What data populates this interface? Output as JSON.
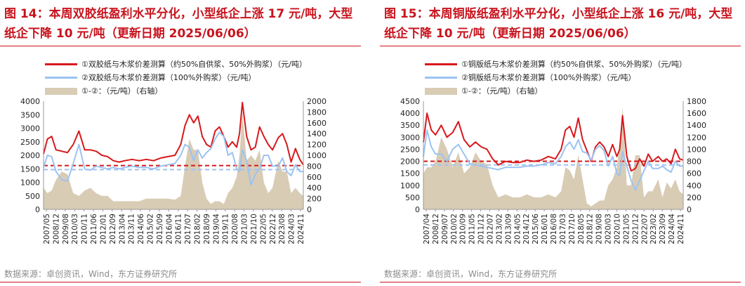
{
  "panels": [
    {
      "title": "图 14：本周双胶纸盈利水平分化，小型纸企上涨 17 元/吨，大型纸企下降 10 元/吨（更新日期 2025/06/06）",
      "source": "数据来源：卓创资讯，Wind，东方证券研究所",
      "chart_data": {
        "type": "line",
        "left_axis": {
          "ylim": [
            0,
            4000
          ],
          "ticks": [
            "0",
            "500",
            "1000",
            "1500",
            "2000",
            "2500",
            "3000",
            "3500",
            "4000"
          ]
        },
        "right_axis": {
          "ylim": [
            0,
            2000
          ],
          "ticks": [
            "0",
            "200",
            "400",
            "600",
            "800",
            "1000",
            "1200",
            "1400",
            "1600",
            "1800",
            "2000"
          ]
        },
        "x_tick_labels": [
          "2007/05",
          "2008/12",
          "2009/08",
          "2010/03",
          "2010/11",
          "2011/06",
          "2012/01",
          "2012/09",
          "2013/04",
          "2013/11",
          "2014/06",
          "2015/02",
          "2015/09",
          "2016/04",
          "2016/11",
          "2017/07",
          "2018/02",
          "2018/09",
          "2019/04",
          "2019/11",
          "2020/08",
          "2021/03",
          "2021/10",
          "2022/05",
          "2022/12",
          "2023/08",
          "2024/03",
          "2024/11"
        ],
        "x_range": [
          2007.33,
          2025.45
        ],
        "reference_lines": [
          {
            "series": "①",
            "value": 1620,
            "axis": "left",
            "color": "#d7191c"
          },
          {
            "series": "②",
            "value": 1470,
            "axis": "left",
            "color": "#9cc3f2"
          }
        ],
        "series": [
          {
            "name": "①双胶纸与木浆价差测算（约50%自供浆、50%外购浆）（元/吨）",
            "axis": "left",
            "type": "line",
            "color": "#d7191c",
            "x": [
              2007.33,
              2007.6,
              2007.9,
              2008.2,
              2008.6,
              2009.0,
              2009.4,
              2009.8,
              2010.2,
              2010.6,
              2011.0,
              2011.4,
              2011.8,
              2012.2,
              2012.6,
              2013.0,
              2013.5,
              2014.0,
              2014.5,
              2015.0,
              2015.5,
              2016.0,
              2016.5,
              2016.9,
              2017.2,
              2017.5,
              2017.8,
              2018.1,
              2018.4,
              2018.7,
              2019.0,
              2019.3,
              2019.6,
              2019.9,
              2020.2,
              2020.5,
              2020.8,
              2021.0,
              2021.2,
              2021.5,
              2021.8,
              2022.1,
              2022.4,
              2022.7,
              2023.0,
              2023.3,
              2023.7,
              2024.0,
              2024.3,
              2024.6,
              2024.9,
              2025.2,
              2025.45
            ],
            "values": [
              2050,
              2600,
              2700,
              2200,
              2150,
              2100,
              2400,
              2900,
              2200,
              2200,
              2150,
              2000,
              1950,
              1800,
              1750,
              1800,
              1850,
              1800,
              1850,
              1800,
              1900,
              1950,
              2000,
              2400,
              3100,
              3500,
              3200,
              3450,
              2700,
              2400,
              2300,
              2900,
              3050,
              2700,
              2300,
              2500,
              2300,
              2800,
              3950,
              2700,
              2200,
              2300,
              3050,
              2700,
              2400,
              2200,
              2650,
              2800,
              2400,
              1750,
              2250,
              1850,
              1650
            ]
          },
          {
            "name": "②双胶纸与木浆价差测算（100%外购浆）（元/吨）",
            "axis": "left",
            "type": "line",
            "color": "#9cc3f2",
            "x": [
              2007.33,
              2007.6,
              2007.9,
              2008.2,
              2008.6,
              2009.0,
              2009.4,
              2009.8,
              2010.2,
              2010.6,
              2011.0,
              2011.4,
              2011.8,
              2012.2,
              2012.6,
              2013.0,
              2013.5,
              2014.0,
              2014.5,
              2015.0,
              2015.5,
              2016.0,
              2016.5,
              2016.9,
              2017.2,
              2017.5,
              2017.8,
              2018.1,
              2018.4,
              2018.7,
              2019.0,
              2019.3,
              2019.6,
              2019.9,
              2020.2,
              2020.5,
              2020.8,
              2021.0,
              2021.2,
              2021.5,
              2021.8,
              2022.1,
              2022.4,
              2022.7,
              2023.0,
              2023.3,
              2023.7,
              2024.0,
              2024.3,
              2024.6,
              2024.9,
              2025.2,
              2025.45
            ],
            "values": [
              1550,
              2000,
              1950,
              1400,
              1100,
              1050,
              1700,
              2400,
              1500,
              1450,
              1600,
              1550,
              1500,
              1550,
              1500,
              1550,
              1600,
              1550,
              1550,
              1500,
              1600,
              1650,
              1700,
              2000,
              2400,
              2300,
              1800,
              2200,
              1900,
              2100,
              2250,
              2600,
              2850,
              2700,
              2000,
              2100,
              1500,
              1400,
              2200,
              1800,
              900,
              1300,
              1500,
              2000,
              2000,
              1600,
              1600,
              1900,
              1400,
              1250,
              1650,
              1400,
              1400
            ]
          },
          {
            "name": "①-②：（元/吨）（右轴）",
            "axis": "right",
            "type": "area",
            "color": "#d9ccb5",
            "x": [
              2007.33,
              2007.6,
              2007.9,
              2008.2,
              2008.6,
              2009.0,
              2009.4,
              2009.8,
              2010.2,
              2010.6,
              2011.0,
              2011.4,
              2011.8,
              2012.2,
              2012.6,
              2013.0,
              2013.5,
              2014.0,
              2014.5,
              2015.0,
              2015.5,
              2016.0,
              2016.5,
              2016.9,
              2017.2,
              2017.5,
              2017.8,
              2018.1,
              2018.4,
              2018.7,
              2019.0,
              2019.3,
              2019.6,
              2019.9,
              2020.2,
              2020.5,
              2020.8,
              2021.0,
              2021.2,
              2021.5,
              2021.8,
              2022.1,
              2022.4,
              2022.7,
              2023.0,
              2023.3,
              2023.7,
              2024.0,
              2024.3,
              2024.6,
              2024.9,
              2025.2,
              2025.45
            ],
            "values": [
              400,
              300,
              350,
              550,
              700,
              650,
              300,
              250,
              350,
              400,
              300,
              250,
              250,
              150,
              150,
              150,
              150,
              150,
              200,
              200,
              200,
              200,
              180,
              250,
              800,
              1300,
              1100,
              1100,
              500,
              200,
              100,
              150,
              150,
              100,
              300,
              400,
              600,
              1000,
              1800,
              900,
              1000,
              900,
              1100,
              500,
              300,
              400,
              900,
              700,
              700,
              300,
              400,
              300,
              250
            ]
          }
        ]
      }
    },
    {
      "title": "图 15：本周铜版纸盈利水平分化，小型纸企上涨 16 元/吨，大型纸企下降 10 元/吨（更新日期 2025/06/06）",
      "source": "数据来源：卓创资讯，Wind，东方证券研究所",
      "chart_data": {
        "type": "line",
        "left_axis": {
          "ylim": [
            0,
            4500
          ],
          "ticks": [
            "0",
            "500",
            "1000",
            "1500",
            "2000",
            "2500",
            "3000",
            "3500",
            "4000",
            "4500"
          ]
        },
        "right_axis": {
          "ylim": [
            0,
            1800
          ],
          "ticks": [
            "0",
            "200",
            "400",
            "600",
            "800",
            "1000",
            "1200",
            "1400",
            "1600",
            "1800"
          ]
        },
        "x_tick_labels": [
          "2007/04",
          "2008/12",
          "2009/07",
          "2010/02",
          "2010/09",
          "2011/05",
          "2011/12",
          "2012/07",
          "2013/02",
          "2013/09",
          "2014/05",
          "2014/12",
          "2015/06",
          "2016/01",
          "2016/08",
          "2017/03",
          "2017/10",
          "2018/05",
          "2018/12",
          "2019/08",
          "2020/03",
          "2020/10",
          "2021/05",
          "2021/12",
          "2022/07",
          "2023/02",
          "2023/09",
          "2024/04",
          "2024/11"
        ],
        "x_range": [
          2007.25,
          2025.45
        ],
        "reference_lines": [
          {
            "series": "①",
            "value": 2000,
            "axis": "left",
            "color": "#d7191c"
          },
          {
            "series": "②",
            "value": 1850,
            "axis": "left",
            "color": "#9cc3f2"
          }
        ],
        "series": [
          {
            "name": "①铜版纸与木浆价差测算（约50%自供浆、50%外购浆）（元/吨）",
            "axis": "left",
            "type": "line",
            "color": "#d7191c",
            "x": [
              2007.25,
              2007.5,
              2007.8,
              2008.1,
              2008.5,
              2008.9,
              2009.3,
              2009.7,
              2010.1,
              2010.5,
              2010.9,
              2011.3,
              2011.7,
              2012.1,
              2012.5,
              2013.0,
              2013.5,
              2014.0,
              2014.5,
              2015.0,
              2015.5,
              2016.0,
              2016.5,
              2016.9,
              2017.2,
              2017.5,
              2017.8,
              2018.1,
              2018.4,
              2018.7,
              2019.0,
              2019.3,
              2019.6,
              2019.9,
              2020.2,
              2020.5,
              2020.8,
              2021.0,
              2021.2,
              2021.5,
              2021.8,
              2022.1,
              2022.4,
              2022.7,
              2023.0,
              2023.3,
              2023.7,
              2024.0,
              2024.3,
              2024.6,
              2024.9,
              2025.2,
              2025.45
            ],
            "values": [
              2800,
              4000,
              3300,
              3100,
              3500,
              3000,
              3200,
              3650,
              2900,
              2600,
              2800,
              2600,
              2500,
              2100,
              1850,
              2000,
              1950,
              1950,
              2050,
              2000,
              2050,
              2200,
              2100,
              2500,
              3300,
              3450,
              3000,
              3800,
              2900,
              2450,
              2000,
              2600,
              2800,
              2600,
              2200,
              2700,
              2200,
              2500,
              3900,
              2200,
              1600,
              1700,
              2100,
              1800,
              2300,
              2000,
              2200,
              2000,
              2100,
              1900,
              2500,
              2100,
              2050
            ]
          },
          {
            "name": "②铜版纸与木浆价差测算（100%外购浆）（元/吨）",
            "axis": "left",
            "type": "line",
            "color": "#9cc3f2",
            "x": [
              2007.25,
              2007.5,
              2007.8,
              2008.1,
              2008.5,
              2008.9,
              2009.3,
              2009.7,
              2010.1,
              2010.5,
              2010.9,
              2011.3,
              2011.7,
              2012.1,
              2012.5,
              2013.0,
              2013.5,
              2014.0,
              2014.5,
              2015.0,
              2015.5,
              2016.0,
              2016.5,
              2016.9,
              2017.2,
              2017.5,
              2017.8,
              2018.1,
              2018.4,
              2018.7,
              2019.0,
              2019.3,
              2019.6,
              2019.9,
              2020.2,
              2020.5,
              2020.8,
              2021.0,
              2021.2,
              2021.5,
              2021.8,
              2022.1,
              2022.4,
              2022.7,
              2023.0,
              2023.3,
              2023.7,
              2024.0,
              2024.3,
              2024.6,
              2024.9,
              2025.2,
              2025.45
            ],
            "values": [
              2200,
              3300,
              2600,
              2300,
              2300,
              2000,
              2500,
              2700,
              2300,
              1900,
              1850,
              1800,
              1750,
              1700,
              1650,
              1750,
              1750,
              1750,
              1800,
              1800,
              1850,
              1950,
              1900,
              2200,
              2600,
              2800,
              2500,
              2900,
              2400,
              2350,
              2050,
              2500,
              2650,
              2450,
              1800,
              2200,
              1500,
              1400,
              2400,
              1800,
              1200,
              800,
              1200,
              1600,
              2000,
              1700,
              1700,
              1800,
              1650,
              1550,
              2000,
              1800,
              1800
            ]
          },
          {
            "name": "①-②：（元/吨）（右轴）",
            "axis": "right",
            "type": "area",
            "color": "#d9ccb5",
            "x": [
              2007.25,
              2007.5,
              2007.8,
              2008.1,
              2008.5,
              2008.9,
              2009.3,
              2009.7,
              2010.1,
              2010.5,
              2010.9,
              2011.3,
              2011.7,
              2012.1,
              2012.5,
              2013.0,
              2013.5,
              2014.0,
              2014.5,
              2015.0,
              2015.5,
              2016.0,
              2016.5,
              2016.9,
              2017.2,
              2017.5,
              2017.8,
              2018.1,
              2018.4,
              2018.7,
              2019.0,
              2019.3,
              2019.6,
              2019.9,
              2020.2,
              2020.5,
              2020.8,
              2021.0,
              2021.2,
              2021.5,
              2021.8,
              2022.1,
              2022.4,
              2022.7,
              2023.0,
              2023.3,
              2023.7,
              2024.0,
              2024.3,
              2024.6,
              2024.9,
              2025.2,
              2025.45
            ],
            "values": [
              600,
              700,
              700,
              800,
              1200,
              1000,
              700,
              950,
              600,
              700,
              950,
              800,
              750,
              400,
              200,
              250,
              200,
              200,
              250,
              200,
              200,
              250,
              200,
              300,
              700,
              650,
              500,
              900,
              500,
              100,
              50,
              100,
              150,
              150,
              400,
              500,
              700,
              1100,
              1700,
              400,
              400,
              900,
              900,
              200,
              300,
              300,
              500,
              200,
              450,
              350,
              500,
              300,
              250
            ]
          }
        ]
      }
    }
  ],
  "legend_symbols": {
    "marker_1": "①",
    "marker_2": "②"
  }
}
